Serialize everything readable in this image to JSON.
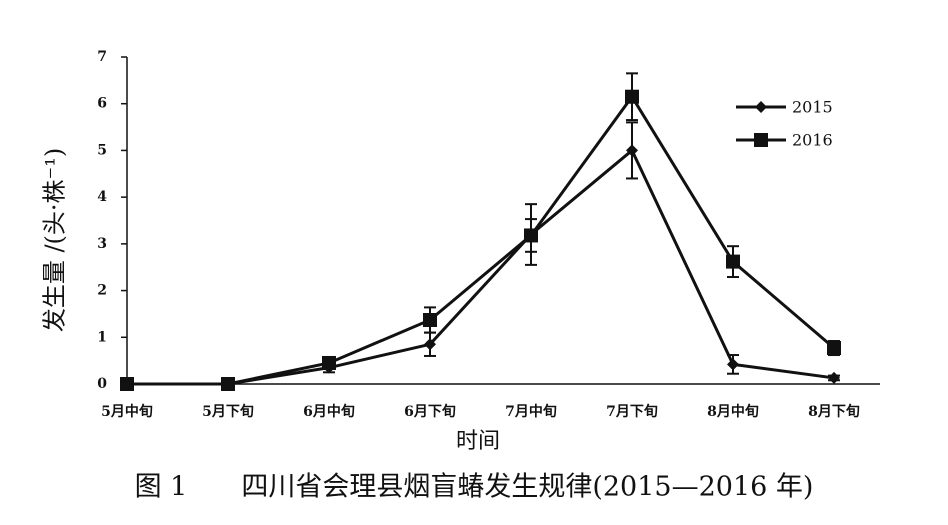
{
  "chart_data": {
    "type": "line",
    "ylabel": "发生量 /(头·株⁻¹)",
    "xlabel": "时间",
    "caption": "图 1　　四川省会理县烟盲蝽发生规律(2015—2016 年)",
    "categories": [
      "5月中旬",
      "5月下旬",
      "6月中旬",
      "6月下旬",
      "7月中旬",
      "7月下旬",
      "8月中旬",
      "8月下旬"
    ],
    "series": [
      {
        "name": "2015",
        "color": "#111111",
        "marker": "diamond",
        "values": [
          0,
          0,
          0.35,
          0.85,
          3.2,
          5.0,
          0.42,
          0.13
        ],
        "errors": [
          0,
          0,
          0.1,
          0.25,
          0.65,
          0.6,
          0.2,
          0.05
        ]
      },
      {
        "name": "2016",
        "color": "#111111",
        "marker": "square",
        "values": [
          0,
          0,
          0.45,
          1.37,
          3.18,
          6.15,
          2.62,
          0.77
        ],
        "errors": [
          0,
          0,
          0.1,
          0.27,
          0.35,
          0.5,
          0.33,
          0.15
        ]
      }
    ],
    "ylim": [
      0,
      7
    ],
    "yticks": [
      0,
      1,
      2,
      3,
      4,
      5,
      6,
      7
    ],
    "grid": false,
    "legend": "upper right"
  }
}
